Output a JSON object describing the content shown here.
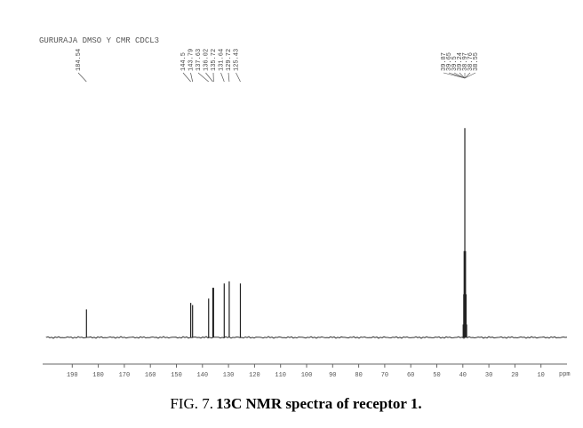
{
  "chart_data": {
    "type": "spectrum",
    "title": "GURURAJA DMSO Y CMR CDCL3",
    "caption_label": "FIG. 7.",
    "caption_text": "13C NMR spectra of receptor 1.",
    "x_label": "ppm",
    "x": [
      184.54,
      144.5,
      143.79,
      137.63,
      136.02,
      135.72,
      131.64,
      129.72,
      125.43,
      39.87,
      39.65,
      39.5,
      39.24,
      38.97,
      38.76,
      38.55
    ],
    "values": [
      13,
      16,
      15,
      18,
      23,
      23,
      25,
      26,
      25,
      6,
      20,
      40,
      97,
      40,
      20,
      6
    ],
    "color": "#222",
    "xlim": [
      200,
      0
    ],
    "ylim": [
      0,
      100
    ],
    "xticks": [
      190,
      180,
      170,
      160,
      150,
      140,
      130,
      120,
      110,
      100,
      90,
      80,
      70,
      60,
      50,
      40,
      30,
      20,
      10
    ]
  }
}
